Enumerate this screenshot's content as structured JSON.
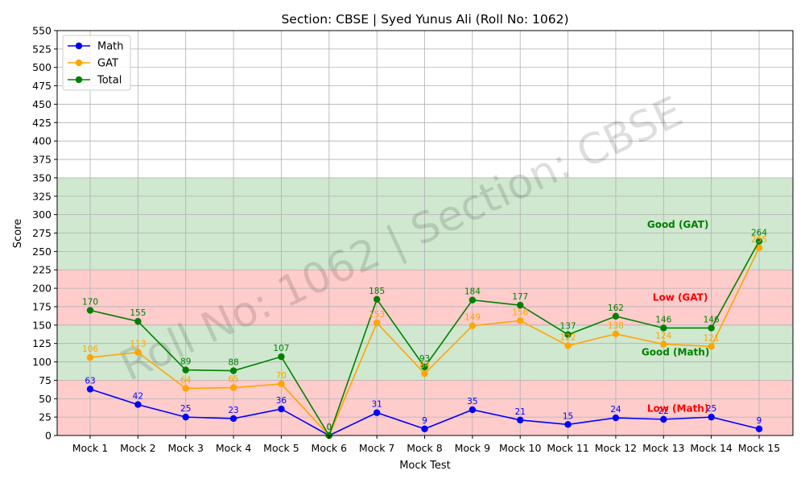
{
  "chart_data": {
    "type": "line",
    "title": "Section: CBSE | Syed Yunus Ali (Roll No: 1062)",
    "xlabel": "Mock Test",
    "ylabel": "Score",
    "ylim": [
      0,
      550
    ],
    "yticks": [
      0,
      25,
      50,
      75,
      100,
      125,
      150,
      175,
      200,
      225,
      250,
      275,
      300,
      325,
      350,
      375,
      400,
      425,
      450,
      475,
      500,
      525,
      550
    ],
    "grid": true,
    "legend_position": "top-left",
    "categories": [
      "Mock 1",
      "Mock 2",
      "Mock 3",
      "Mock 4",
      "Mock 5",
      "Mock 6",
      "Mock 7",
      "Mock 8",
      "Mock 9",
      "Mock 10",
      "Mock 11",
      "Mock 12",
      "Mock 13",
      "Mock 14",
      "Mock 15"
    ],
    "series": [
      {
        "name": "Math",
        "color": "#0000ff",
        "values": [
          63,
          42,
          25,
          23,
          36,
          0,
          31,
          9,
          35,
          21,
          15,
          24,
          22,
          25,
          9
        ]
      },
      {
        "name": "GAT",
        "color": "#ffa500",
        "values": [
          106,
          113,
          64,
          65,
          70,
          0,
          153,
          84,
          149,
          156,
          122,
          138,
          124,
          121,
          255
        ]
      },
      {
        "name": "Total",
        "color": "#008000",
        "values": [
          170,
          155,
          89,
          88,
          107,
          0,
          185,
          93,
          184,
          177,
          137,
          162,
          146,
          146,
          264
        ]
      }
    ],
    "bands": [
      {
        "from": 0,
        "to": 75,
        "color": "#ffcccc"
      },
      {
        "from": 75,
        "to": 150,
        "color": "#cfe8cf"
      },
      {
        "from": 150,
        "to": 225,
        "color": "#ffcccc"
      },
      {
        "from": 225,
        "to": 350,
        "color": "#cfe8cf"
      }
    ],
    "annotations": [
      {
        "text": "Good (GAT)",
        "x_index": 12.3,
        "y": 282,
        "color": "#008000"
      },
      {
        "text": "Low (GAT)",
        "x_index": 12.35,
        "y": 183,
        "color": "#ff0000"
      },
      {
        "text": "Good (Math)",
        "x_index": 12.25,
        "y": 109,
        "color": "#008000"
      },
      {
        "text": "Low (Math)",
        "x_index": 12.3,
        "y": 32,
        "color": "#ff0000"
      }
    ],
    "watermark": "Roll No: 1062 | Section: CBSE"
  }
}
